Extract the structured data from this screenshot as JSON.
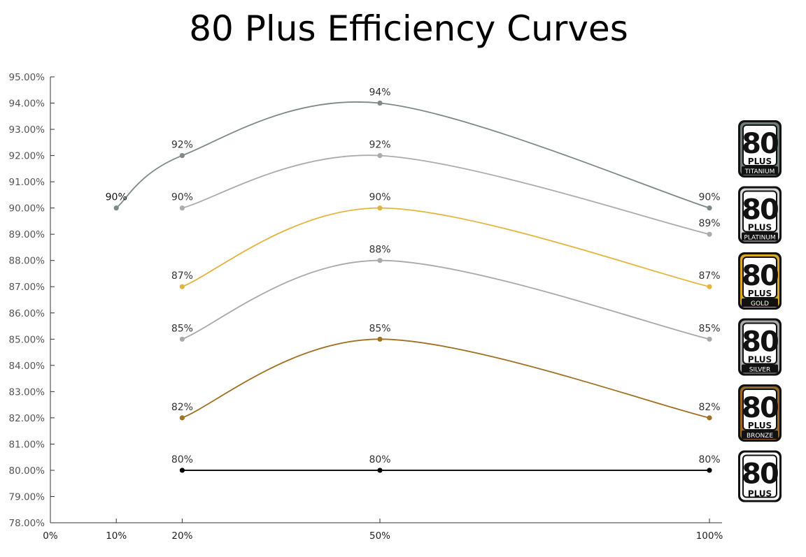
{
  "chart_data": {
    "type": "line",
    "title": "80 Plus Efficiency Curves",
    "xlabel": "",
    "ylabel": "",
    "x_ticks": [
      {
        "value": 0,
        "label": "0%"
      },
      {
        "value": 10,
        "label": "10%"
      },
      {
        "value": 20,
        "label": "20%"
      },
      {
        "value": 50,
        "label": "50%"
      },
      {
        "value": 100,
        "label": "100%"
      }
    ],
    "xlim": [
      0,
      100
    ],
    "ylim": [
      78,
      95
    ],
    "y_ticks": [
      "78.00%",
      "79.00%",
      "80.00%",
      "81.00%",
      "82.00%",
      "83.00%",
      "84.00%",
      "85.00%",
      "86.00%",
      "87.00%",
      "88.00%",
      "89.00%",
      "90.00%",
      "91.00%",
      "92.00%",
      "93.00%",
      "94.00%",
      "95.00%"
    ],
    "grid": false,
    "legend": "right",
    "series": [
      {
        "badge": "TITANIUM",
        "color": "#7d8a87",
        "x": [
          10,
          20,
          50,
          100
        ],
        "y": [
          90,
          92,
          94,
          90
        ],
        "labels": [
          "90%",
          "92%",
          "94%",
          "90%"
        ]
      },
      {
        "badge": "PLATINUM",
        "color": "#acacac",
        "x": [
          20,
          50,
          100
        ],
        "y": [
          90,
          92,
          89
        ],
        "labels": [
          "90%",
          "92%",
          "89%"
        ]
      },
      {
        "badge": "GOLD",
        "color": "#e4b43e",
        "x": [
          20,
          50,
          100
        ],
        "y": [
          87,
          90,
          87
        ],
        "labels": [
          "87%",
          "90%",
          "87%"
        ]
      },
      {
        "badge": "SILVER",
        "color": "#a9a9a9",
        "x": [
          20,
          50,
          100
        ],
        "y": [
          85,
          88,
          85
        ],
        "labels": [
          "85%",
          "88%",
          "85%"
        ]
      },
      {
        "badge": "BRONZE",
        "color": "#a27024",
        "x": [
          20,
          50,
          100
        ],
        "y": [
          82,
          85,
          82
        ],
        "labels": [
          "82%",
          "85%",
          "82%"
        ]
      },
      {
        "badge": "",
        "color": "#000000",
        "x": [
          20,
          50,
          100
        ],
        "y": [
          80,
          80,
          80
        ],
        "labels": [
          "80%",
          "80%",
          "80%"
        ]
      }
    ]
  },
  "badges": [
    {
      "number": "80",
      "word": "PLUS",
      "tier": "TITANIUM",
      "bg": "#6f7c78",
      "fg": "#111111"
    },
    {
      "number": "80",
      "word": "PLUS",
      "tier": "PLATINUM",
      "bg": "#d6d6d6",
      "fg": "#111111"
    },
    {
      "number": "80",
      "word": "PLUS",
      "tier": "GOLD",
      "bg": "#d9a929",
      "fg": "#111111"
    },
    {
      "number": "80",
      "word": "PLUS",
      "tier": "SILVER",
      "bg": "#a9a9a9",
      "fg": "#111111"
    },
    {
      "number": "80",
      "word": "PLUS",
      "tier": "BRONZE",
      "bg": "#9b6a22",
      "fg": "#111111"
    },
    {
      "number": "80",
      "word": "PLUS",
      "tier": "",
      "bg": "#ffffff",
      "fg": "#111111"
    }
  ]
}
